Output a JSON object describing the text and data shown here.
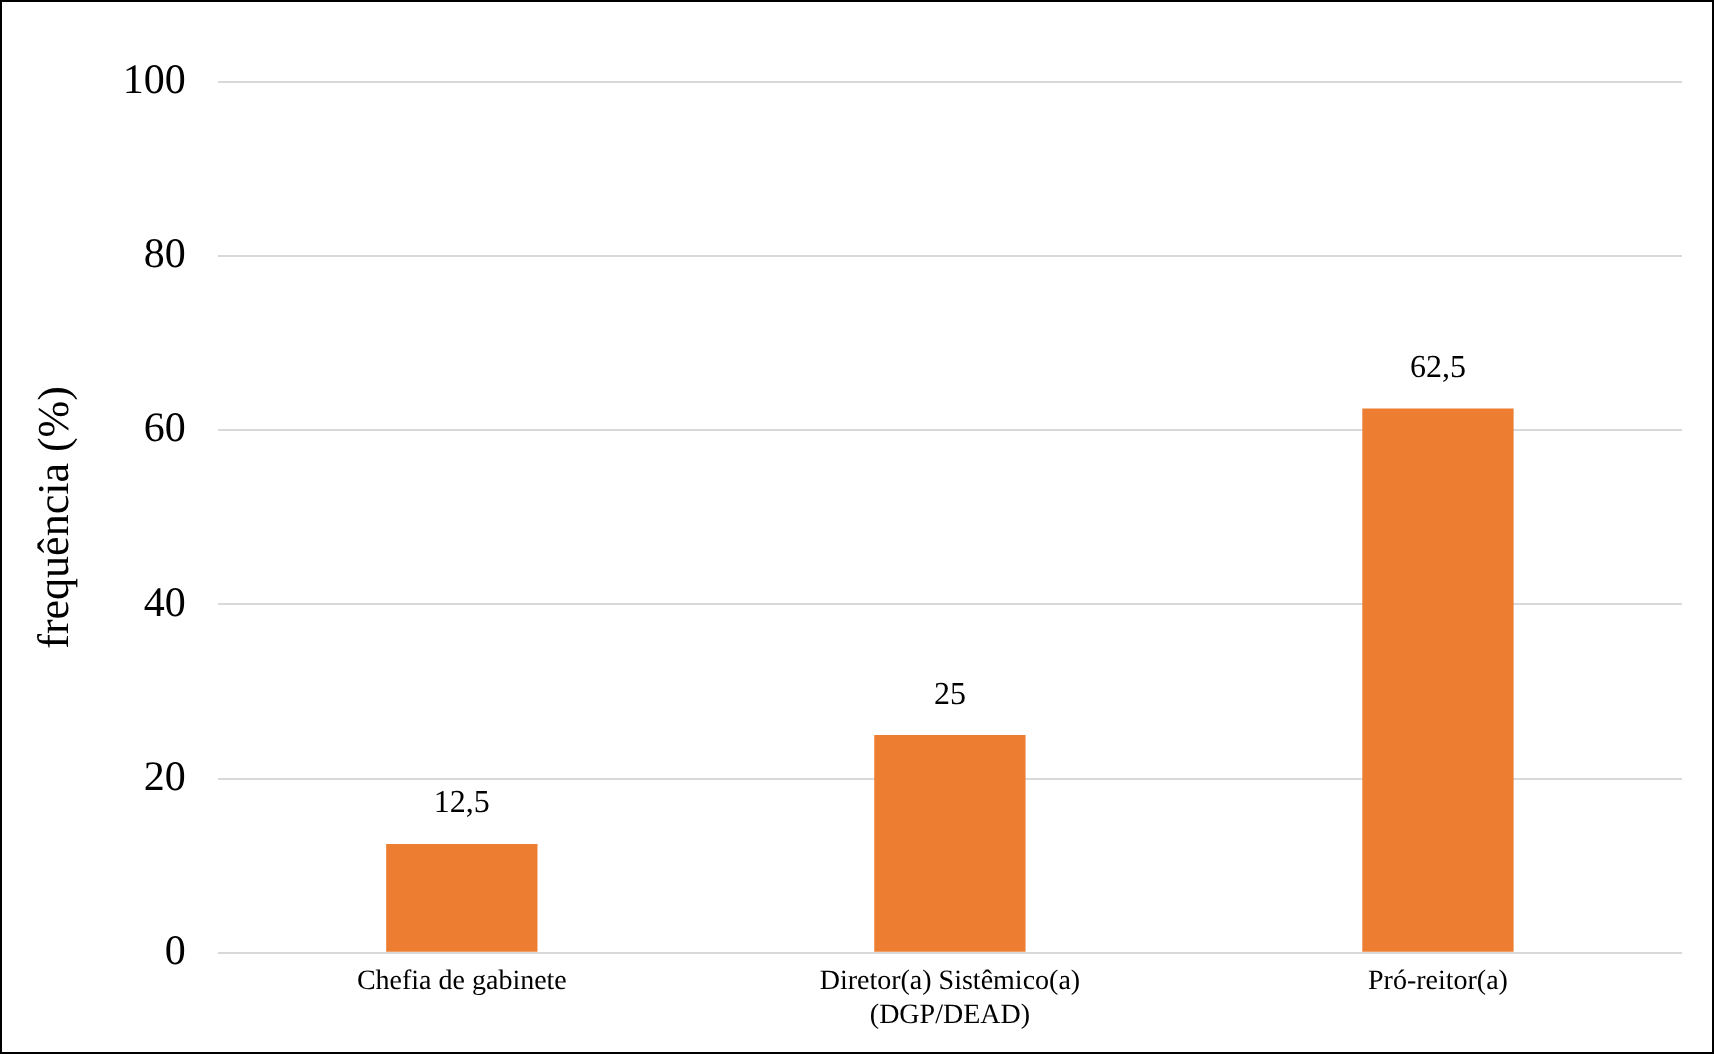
{
  "chart_data": {
    "type": "bar",
    "ylabel": "frequência (%)",
    "categories": [
      "Chefia de gabinete",
      "Diretor(a) Sistêmico(a) (DGP/DEAD)",
      "Pró-reitor(a)"
    ],
    "values": [
      12.5,
      25,
      62.5
    ],
    "value_labels": [
      "12,5",
      "25",
      "62,5"
    ],
    "color": "#ed7d31",
    "ylim": [
      0,
      100
    ],
    "yticks": [
      0,
      20,
      40,
      60,
      80,
      100
    ],
    "grid": "y",
    "legend": false
  }
}
